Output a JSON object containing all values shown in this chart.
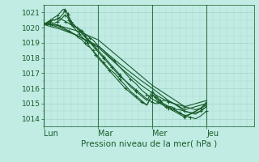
{
  "title": "",
  "xlabel": "Pression niveau de la mer( hPa )",
  "bg_color": "#c0ece4",
  "grid_color": "#a8d8d0",
  "line_color": "#1a5c2a",
  "tick_label_color": "#1a5c2a",
  "xlim": [
    0,
    3.0
  ],
  "ylim": [
    1013.5,
    1021.5
  ],
  "yticks": [
    1014,
    1015,
    1016,
    1017,
    1018,
    1019,
    1020,
    1021
  ],
  "xtick_labels": [
    "Lun",
    "Mar",
    "Mer",
    "Jeu"
  ],
  "xtick_positions": [
    0.0,
    1.0,
    2.0,
    3.0
  ],
  "minor_xticks_per_day": 8,
  "minor_ytick_step": 0.5,
  "series": [
    {
      "x": [
        0.0,
        0.04,
        0.08,
        0.12,
        0.16,
        0.2,
        0.25,
        0.3,
        0.35,
        0.38,
        0.4,
        0.42,
        0.44,
        0.46,
        0.48,
        0.5,
        0.55,
        0.6,
        0.65,
        0.7,
        0.75,
        0.8,
        0.85,
        0.9,
        0.95,
        1.0,
        1.05,
        1.1,
        1.15,
        1.2,
        1.25,
        1.3,
        1.35,
        1.4,
        1.5,
        1.6,
        1.7,
        1.8,
        1.9,
        2.0,
        2.05,
        2.1,
        2.15,
        2.2,
        2.25,
        2.3,
        2.4,
        2.5,
        2.6,
        2.7,
        2.8,
        2.9,
        3.0
      ],
      "y": [
        1020.3,
        1020.3,
        1020.4,
        1020.4,
        1020.5,
        1020.5,
        1020.6,
        1020.7,
        1020.9,
        1021.1,
        1021.1,
        1021.0,
        1020.9,
        1020.7,
        1020.6,
        1020.4,
        1020.2,
        1020.0,
        1019.8,
        1019.6,
        1019.4,
        1019.2,
        1019.0,
        1018.8,
        1018.6,
        1018.4,
        1018.2,
        1018.0,
        1017.8,
        1017.6,
        1017.4,
        1017.2,
        1017.0,
        1016.8,
        1016.5,
        1016.2,
        1015.9,
        1015.6,
        1015.3,
        1015.1,
        1015.0,
        1015.0,
        1015.1,
        1015.2,
        1015.2,
        1015.1,
        1015.0,
        1014.9,
        1014.8,
        1014.7,
        1014.6,
        1014.7,
        1015.0
      ],
      "marker": "+",
      "lw": 0.8,
      "ms": 2.5,
      "markevery": 3
    },
    {
      "x": [
        0.0,
        0.05,
        0.1,
        0.15,
        0.2,
        0.25,
        0.3,
        0.35,
        0.4,
        0.45,
        0.5,
        0.55,
        0.6,
        0.65,
        0.7,
        0.75,
        0.8,
        0.85,
        0.9,
        0.95,
        1.0,
        1.1,
        1.2,
        1.3,
        1.4,
        1.5,
        1.6,
        1.7,
        1.8,
        1.9,
        2.0,
        2.1,
        2.2,
        2.3,
        2.4,
        2.5,
        2.6,
        2.7,
        2.8,
        2.9,
        3.0
      ],
      "y": [
        1020.3,
        1020.3,
        1020.3,
        1020.2,
        1020.2,
        1020.2,
        1020.1,
        1020.0,
        1019.9,
        1019.8,
        1019.7,
        1019.6,
        1019.5,
        1019.3,
        1019.2,
        1019.0,
        1018.8,
        1018.7,
        1018.5,
        1018.3,
        1018.1,
        1017.7,
        1017.3,
        1017.0,
        1016.6,
        1016.2,
        1015.8,
        1015.5,
        1015.2,
        1014.9,
        1015.6,
        1015.3,
        1015.0,
        1014.8,
        1014.6,
        1014.4,
        1014.2,
        1014.3,
        1014.5,
        1014.7,
        1014.9
      ],
      "marker": "+",
      "lw": 0.8,
      "ms": 2.5,
      "markevery": 3
    },
    {
      "x": [
        0.0,
        0.04,
        0.08,
        0.12,
        0.16,
        0.2,
        0.25,
        0.3,
        0.35,
        0.38,
        0.4,
        0.42,
        0.44,
        0.46,
        0.48,
        0.5,
        0.55,
        0.6,
        0.65,
        0.7,
        0.75,
        0.8,
        0.85,
        0.9,
        0.95,
        1.0,
        1.1,
        1.2,
        1.3,
        1.4,
        1.5,
        1.6,
        1.7,
        1.8,
        1.9,
        2.0,
        2.05,
        2.1,
        2.2,
        2.3,
        2.4,
        2.5,
        2.6,
        2.7,
        2.8,
        2.9,
        3.0
      ],
      "y": [
        1020.2,
        1020.3,
        1020.4,
        1020.5,
        1020.6,
        1020.7,
        1020.8,
        1021.0,
        1021.2,
        1021.2,
        1021.1,
        1021.0,
        1020.8,
        1020.6,
        1020.4,
        1020.2,
        1020.0,
        1019.8,
        1019.6,
        1019.4,
        1019.2,
        1019.0,
        1018.7,
        1018.5,
        1018.2,
        1018.0,
        1017.6,
        1017.2,
        1016.8,
        1016.4,
        1016.0,
        1015.7,
        1015.4,
        1015.1,
        1014.9,
        1015.6,
        1015.4,
        1015.2,
        1014.9,
        1014.7,
        1014.5,
        1014.3,
        1014.1,
        1014.3,
        1014.5,
        1014.7,
        1015.1
      ],
      "marker": "+",
      "lw": 0.8,
      "ms": 2.5,
      "markevery": 3
    },
    {
      "x": [
        0.0,
        0.3,
        0.6,
        1.0,
        1.4,
        1.8,
        2.0,
        2.3,
        2.6,
        3.0
      ],
      "y": [
        1020.3,
        1020.0,
        1019.5,
        1018.8,
        1017.6,
        1016.5,
        1016.0,
        1015.2,
        1014.6,
        1015.0
      ],
      "marker": null,
      "lw": 0.8,
      "ms": 0,
      "markevery": 1
    },
    {
      "x": [
        0.0,
        0.3,
        0.6,
        1.0,
        1.4,
        1.8,
        2.0,
        2.3,
        2.6,
        3.0
      ],
      "y": [
        1020.3,
        1020.1,
        1019.8,
        1019.2,
        1018.0,
        1016.8,
        1016.2,
        1015.5,
        1014.8,
        1015.2
      ],
      "marker": null,
      "lw": 0.8,
      "ms": 0,
      "markevery": 1
    },
    {
      "x": [
        0.0,
        0.3,
        0.6,
        1.0,
        1.4,
        1.8,
        2.0,
        2.2,
        2.4,
        2.6,
        2.8,
        3.0
      ],
      "y": [
        1020.2,
        1019.9,
        1019.5,
        1018.7,
        1017.4,
        1016.2,
        1015.7,
        1015.3,
        1015.0,
        1014.5,
        1014.3,
        1014.8
      ],
      "marker": null,
      "lw": 0.8,
      "ms": 0,
      "markevery": 1
    },
    {
      "x": [
        0.0,
        0.04,
        0.08,
        0.12,
        0.16,
        0.2,
        0.25,
        0.3,
        0.35,
        0.4,
        0.45,
        0.5,
        0.55,
        0.6,
        0.65,
        0.7,
        0.75,
        0.8,
        0.85,
        0.9,
        0.95,
        1.0,
        1.1,
        1.2,
        1.3,
        1.4,
        1.5,
        1.6,
        1.7,
        1.8,
        1.9,
        2.0,
        2.05,
        2.1,
        2.15,
        2.2,
        2.25,
        2.3,
        2.35,
        2.4,
        2.45,
        2.5,
        2.6,
        2.7,
        2.8,
        2.9,
        3.0
      ],
      "y": [
        1020.3,
        1020.3,
        1020.4,
        1020.4,
        1020.5,
        1020.5,
        1020.6,
        1020.6,
        1020.5,
        1020.4,
        1020.3,
        1020.2,
        1020.1,
        1020.0,
        1019.9,
        1019.8,
        1019.6,
        1019.5,
        1019.3,
        1019.2,
        1019.0,
        1018.8,
        1018.5,
        1018.1,
        1017.8,
        1017.4,
        1017.0,
        1016.6,
        1016.3,
        1015.9,
        1015.6,
        1015.3,
        1015.2,
        1015.1,
        1015.0,
        1014.9,
        1014.8,
        1014.8,
        1014.8,
        1014.7,
        1014.6,
        1014.6,
        1014.5,
        1014.4,
        1014.4,
        1014.5,
        1014.8
      ],
      "marker": "+",
      "lw": 0.8,
      "ms": 2.5,
      "markevery": 3
    },
    {
      "x": [
        0.0,
        0.04,
        0.08,
        0.12,
        0.16,
        0.2,
        0.25,
        0.3,
        0.35,
        0.38,
        0.4,
        0.43,
        0.46,
        0.5,
        0.55,
        0.6,
        0.65,
        0.7,
        0.75,
        0.8,
        0.85,
        0.9,
        0.95,
        1.0,
        1.1,
        1.2,
        1.3,
        1.4,
        1.5,
        1.6,
        1.7,
        1.8,
        1.9,
        2.0,
        2.05,
        2.1,
        2.15,
        2.2,
        2.3,
        2.35,
        2.4,
        2.45,
        2.5,
        2.55,
        2.6,
        2.7,
        2.8,
        2.9,
        3.0
      ],
      "y": [
        1020.3,
        1020.2,
        1020.2,
        1020.2,
        1020.3,
        1020.3,
        1020.4,
        1020.5,
        1020.7,
        1020.8,
        1020.8,
        1020.7,
        1020.5,
        1020.3,
        1020.2,
        1020.0,
        1019.9,
        1019.7,
        1019.5,
        1019.3,
        1019.1,
        1018.9,
        1018.7,
        1018.5,
        1018.1,
        1017.7,
        1017.3,
        1016.9,
        1016.5,
        1016.1,
        1015.8,
        1015.5,
        1015.2,
        1015.8,
        1015.6,
        1015.4,
        1015.2,
        1015.0,
        1014.8,
        1014.7,
        1014.6,
        1014.5,
        1014.4,
        1014.3,
        1014.2,
        1014.1,
        1014.0,
        1014.2,
        1014.5
      ],
      "marker": "+",
      "lw": 0.8,
      "ms": 2.5,
      "markevery": 3
    }
  ]
}
